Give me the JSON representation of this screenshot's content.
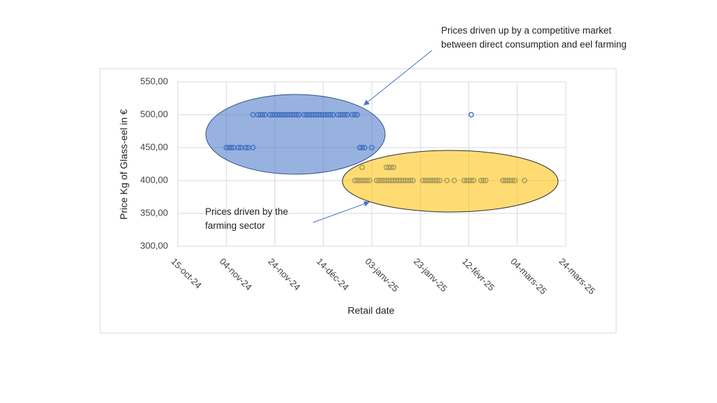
{
  "chart_data": {
    "type": "scatter",
    "x_label": "Retail date",
    "y_label": "Price Kg of Glass-eel in €",
    "annotations": [
      "Prices driven up by a competitive market between direct consumption and eel farming",
      "Prices driven by the farming sector"
    ],
    "grid": true,
    "xlim": [
      "2024-10-15",
      "2025-03-24"
    ],
    "xticks": [
      {
        "value": "2024-10-15",
        "label": "15-oct-24"
      },
      {
        "value": "2024-11-04",
        "label": "04-nov-24"
      },
      {
        "value": "2024-11-24",
        "label": "24-nov-24"
      },
      {
        "value": "2024-12-14",
        "label": "14-déc-24"
      },
      {
        "value": "2025-01-03",
        "label": "03-janv-25"
      },
      {
        "value": "2025-01-23",
        "label": "23-janv-25"
      },
      {
        "value": "2025-02-12",
        "label": "12-févr-25"
      },
      {
        "value": "2025-03-04",
        "label": "04-mars-25"
      },
      {
        "value": "2025-03-24",
        "label": "24-mars-25"
      }
    ],
    "ylim": [
      300,
      550
    ],
    "yticks": [
      {
        "value": 300,
        "label": "300,00"
      },
      {
        "value": 350,
        "label": "350,00"
      },
      {
        "value": 400,
        "label": "400,00"
      },
      {
        "value": 450,
        "label": "450,00"
      },
      {
        "value": 500,
        "label": "500,00"
      },
      {
        "value": 550,
        "label": "550,00"
      }
    ],
    "series": [
      {
        "name": "Price",
        "color": "#4472c4",
        "x": [
          "2024-11-04",
          "2024-11-05",
          "2024-11-06",
          "2024-11-07",
          "2024-11-09",
          "2024-11-10",
          "2024-11-12",
          "2024-11-13",
          "2024-11-15",
          "2024-12-29",
          "2024-12-30",
          "2024-12-31",
          "2025-01-03",
          "2024-11-15",
          "2024-11-17",
          "2024-11-18",
          "2024-11-19",
          "2024-11-20",
          "2024-11-22",
          "2024-11-23",
          "2024-11-24",
          "2024-11-25",
          "2024-11-26",
          "2024-11-27",
          "2024-11-28",
          "2024-11-29",
          "2024-11-30",
          "2024-12-01",
          "2024-12-02",
          "2024-12-03",
          "2024-12-04",
          "2024-12-06",
          "2024-12-07",
          "2024-12-08",
          "2024-12-09",
          "2024-12-10",
          "2024-12-11",
          "2024-12-12",
          "2024-12-13",
          "2024-12-14",
          "2024-12-15",
          "2024-12-16",
          "2024-12-17",
          "2024-12-18",
          "2024-12-20",
          "2024-12-21",
          "2024-12-22",
          "2024-12-23",
          "2024-12-24",
          "2024-12-26",
          "2024-12-27",
          "2024-12-28",
          "2025-02-13",
          "2024-12-30",
          "2025-01-09",
          "2025-01-10",
          "2025-01-11",
          "2025-01-12",
          "2024-12-27",
          "2024-12-28",
          "2024-12-29",
          "2024-12-30",
          "2024-12-31",
          "2025-01-01",
          "2025-01-02",
          "2025-01-05",
          "2025-01-06",
          "2025-01-07",
          "2025-01-08",
          "2025-01-09",
          "2025-01-10",
          "2025-01-11",
          "2025-01-12",
          "2025-01-13",
          "2025-01-14",
          "2025-01-15",
          "2025-01-16",
          "2025-01-17",
          "2025-01-18",
          "2025-01-19",
          "2025-01-20",
          "2025-01-24",
          "2025-01-25",
          "2025-01-26",
          "2025-01-27",
          "2025-01-28",
          "2025-01-29",
          "2025-01-30",
          "2025-01-31",
          "2025-02-03",
          "2025-02-06",
          "2025-02-10",
          "2025-02-11",
          "2025-02-12",
          "2025-02-13",
          "2025-02-14",
          "2025-02-17",
          "2025-02-18",
          "2025-02-19",
          "2025-02-26",
          "2025-02-27",
          "2025-02-28",
          "2025-03-01",
          "2025-03-02",
          "2025-03-03",
          "2025-03-07"
        ],
        "values": [
          450,
          450,
          450,
          450,
          450,
          450,
          450,
          450,
          450,
          450,
          450,
          450,
          450,
          500,
          500,
          500,
          500,
          500,
          500,
          500,
          500,
          500,
          500,
          500,
          500,
          500,
          500,
          500,
          500,
          500,
          500,
          500,
          500,
          500,
          500,
          500,
          500,
          500,
          500,
          500,
          500,
          500,
          500,
          500,
          500,
          500,
          500,
          500,
          500,
          500,
          500,
          500,
          500,
          420,
          420,
          420,
          420,
          420,
          400,
          400,
          400,
          400,
          400,
          400,
          400,
          400,
          400,
          400,
          400,
          400,
          400,
          400,
          400,
          400,
          400,
          400,
          400,
          400,
          400,
          400,
          400,
          400,
          400,
          400,
          400,
          400,
          400,
          400,
          400,
          400,
          400,
          400,
          400,
          400,
          400,
          400,
          400,
          400,
          400,
          400,
          400,
          400,
          400,
          400,
          400,
          400
        ]
      }
    ]
  }
}
